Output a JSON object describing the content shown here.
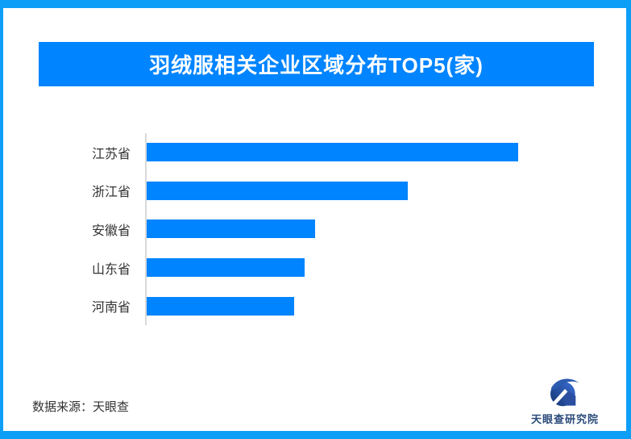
{
  "header": {
    "title": "羽绒服相关企业区域分布TOP5(家)"
  },
  "chart_data": {
    "type": "bar",
    "orientation": "horizontal",
    "title": "羽绒服相关企业区域分布TOP5(家)",
    "categories": [
      "江苏省",
      "浙江省",
      "安徽省",
      "山东省",
      "河南省"
    ],
    "values_pct_of_max": [
      100,
      70.2,
      45.3,
      42.6,
      39.7
    ],
    "bar_pct_of_plot": [
      82.6,
      58.0,
      37.4,
      35.2,
      32.8
    ],
    "value_labels_shown": false,
    "bar_color": "#0084ff",
    "axis_line_color": "#d9d9d9",
    "grid": false,
    "legend": false,
    "xlabel": "",
    "ylabel": ""
  },
  "footer": {
    "source": "数据来源：天眼查",
    "logo_text": "天眼查研究院"
  },
  "colors": {
    "frame_border": "#0d9ff8",
    "accent_blue": "#0084ff",
    "text": "#333333",
    "logo_text": "#2b4a7a"
  }
}
